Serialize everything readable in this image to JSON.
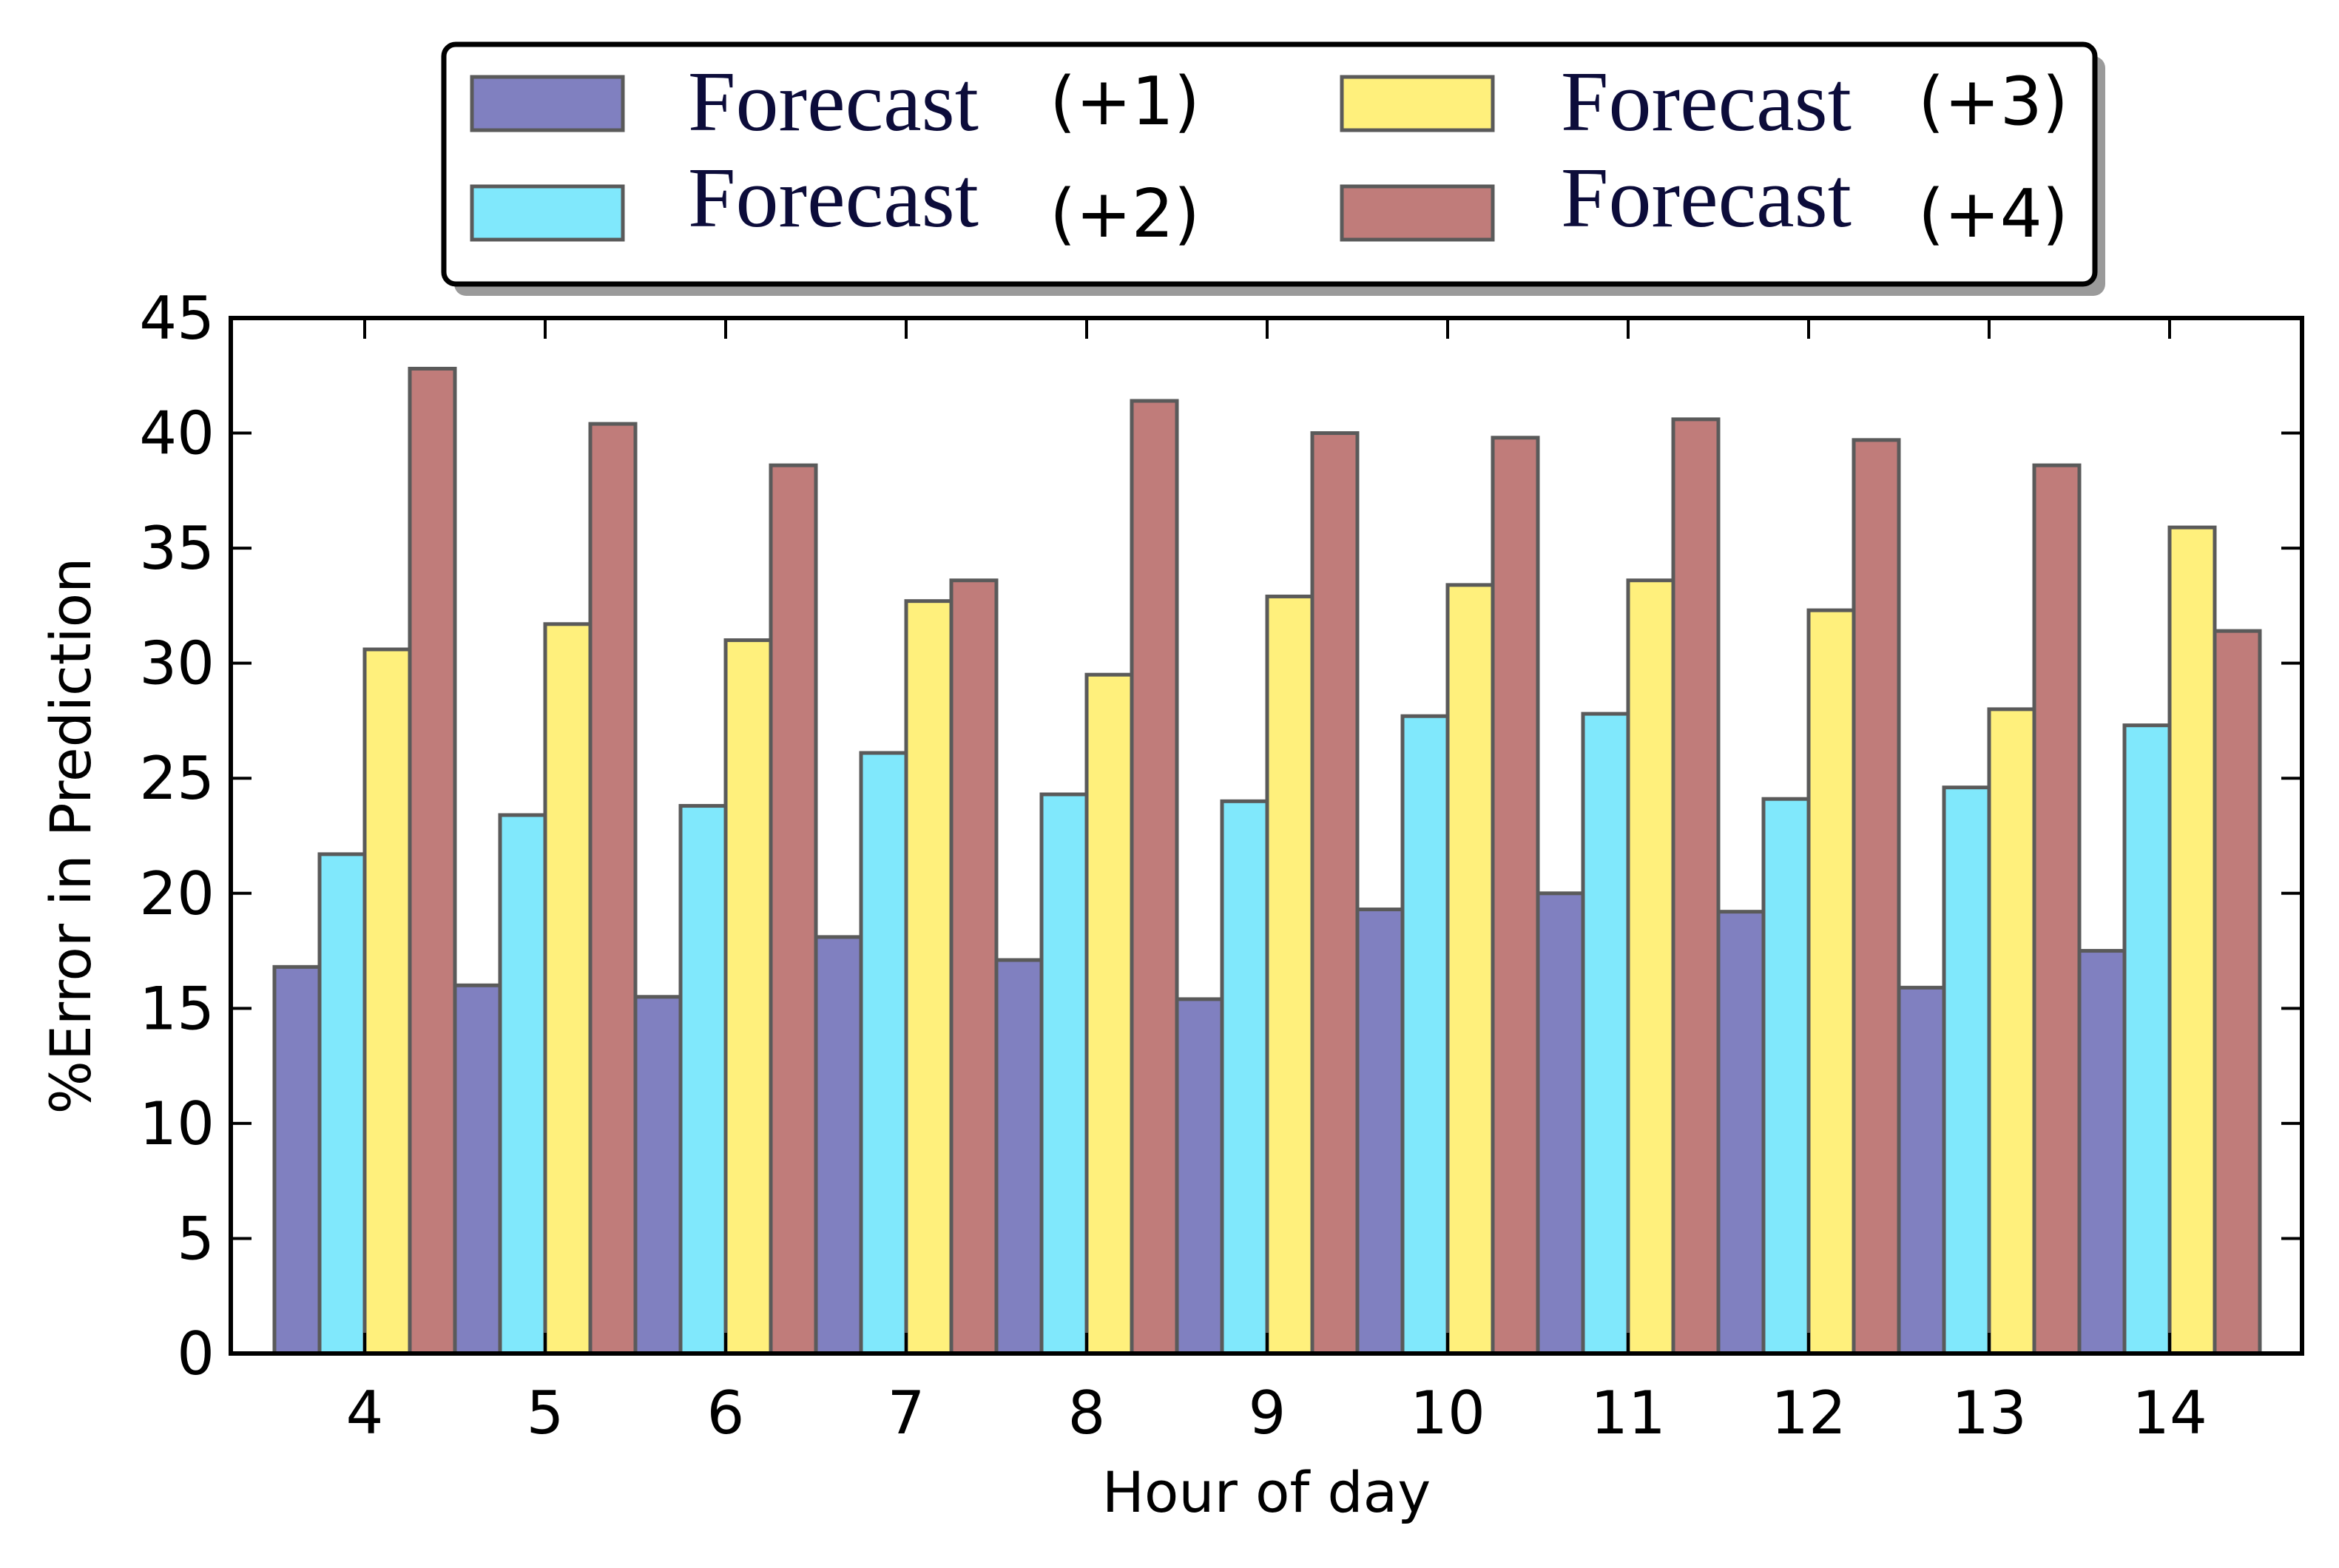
{
  "chart_data": {
    "type": "bar",
    "title": "",
    "xlabel": "Hour of day",
    "ylabel": "%Error in Prediction",
    "categories": [
      "4",
      "5",
      "6",
      "7",
      "8",
      "9",
      "10",
      "11",
      "12",
      "13",
      "14"
    ],
    "ylim": [
      0,
      45
    ],
    "yticks": [
      "0",
      "5",
      "10",
      "15",
      "20",
      "25",
      "30",
      "35",
      "40",
      "45"
    ],
    "grid": false,
    "legend_position": "top-center",
    "series": [
      {
        "name_word": "Forecast",
        "name_suffix": "(+1)",
        "color": "#8080c0",
        "values": [
          16.8,
          16.0,
          15.5,
          18.1,
          17.1,
          15.4,
          19.3,
          20.0,
          19.2,
          15.9,
          17.5
        ]
      },
      {
        "name_word": "Forecast",
        "name_suffix": "(+2)",
        "color": "#80e8fc",
        "values": [
          21.7,
          23.4,
          23.8,
          26.1,
          24.3,
          24.0,
          27.7,
          27.8,
          24.1,
          24.6,
          27.3
        ]
      },
      {
        "name_word": "Forecast",
        "name_suffix": "(+3)",
        "color": "#fff07c",
        "values": [
          30.6,
          31.7,
          31.0,
          32.7,
          29.5,
          32.9,
          33.4,
          33.6,
          32.3,
          28.0,
          35.9
        ]
      },
      {
        "name_word": "Forecast",
        "name_suffix": "(+4)",
        "color": "#c07c7a",
        "values": [
          42.8,
          40.4,
          38.6,
          33.6,
          41.4,
          40.0,
          39.8,
          40.6,
          39.7,
          38.6,
          31.4
        ]
      }
    ]
  }
}
